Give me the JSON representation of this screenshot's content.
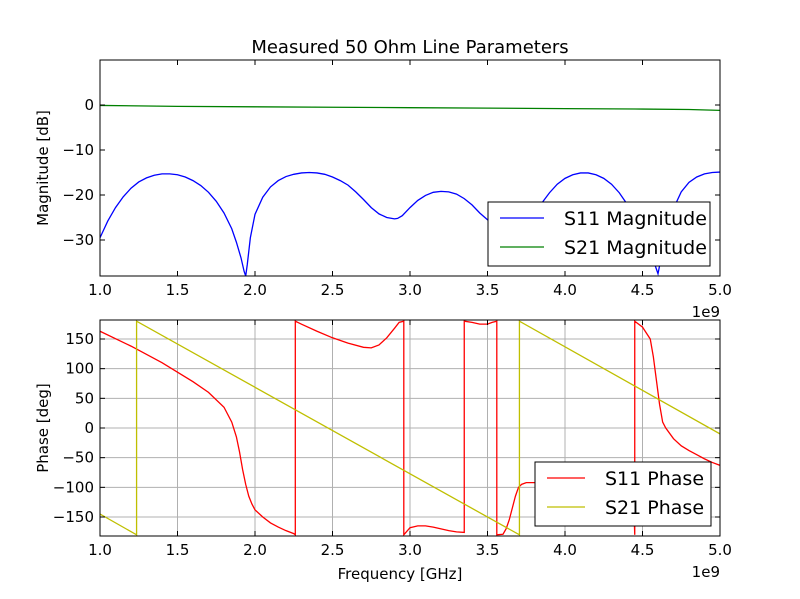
{
  "chart_data": [
    {
      "type": "line",
      "title": "Measured 50 Ohm Line Parameters",
      "xlabel": "",
      "ylabel": "Magnitude [dB]",
      "xlim": [
        1.0,
        5.0
      ],
      "ylim": [
        -38,
        10
      ],
      "x_ticks": [
        "1.0",
        "1.5",
        "2.0",
        "2.5",
        "3.0",
        "3.5",
        "4.0",
        "4.5",
        "5.0"
      ],
      "y_ticks": [
        "0",
        "−10",
        "−20",
        "−30"
      ],
      "x_offset_label": "1e9",
      "grid": false,
      "legend_position": "lower-right",
      "series": [
        {
          "name": "S11 Magnitude",
          "color": "#0000ff",
          "x": [
            1.0,
            1.05,
            1.1,
            1.15,
            1.2,
            1.25,
            1.3,
            1.35,
            1.4,
            1.45,
            1.5,
            1.55,
            1.6,
            1.65,
            1.7,
            1.75,
            1.8,
            1.85,
            1.88,
            1.91,
            1.93,
            1.94,
            1.95,
            1.97,
            2.0,
            2.05,
            2.1,
            2.15,
            2.2,
            2.25,
            2.3,
            2.35,
            2.4,
            2.45,
            2.5,
            2.55,
            2.6,
            2.65,
            2.7,
            2.75,
            2.8,
            2.85,
            2.9,
            2.92,
            2.95,
            3.0,
            3.05,
            3.1,
            3.15,
            3.2,
            3.25,
            3.3,
            3.35,
            3.4,
            3.45,
            3.5,
            3.55,
            3.6,
            3.65,
            3.7,
            3.75,
            3.8,
            3.85,
            3.9,
            3.95,
            4.0,
            4.05,
            4.1,
            4.15,
            4.2,
            4.25,
            4.3,
            4.35,
            4.4,
            4.45,
            4.5,
            4.55,
            4.58,
            4.6,
            4.62,
            4.65,
            4.7,
            4.75,
            4.8,
            4.85,
            4.9,
            4.95,
            5.0
          ],
          "y": [
            -29.5,
            -25.8,
            -22.8,
            -20.4,
            -18.5,
            -17.1,
            -16.2,
            -15.6,
            -15.3,
            -15.3,
            -15.5,
            -16.0,
            -16.8,
            -17.9,
            -19.4,
            -21.4,
            -24.0,
            -27.5,
            -30.5,
            -34.0,
            -37.0,
            -38.0,
            -35.5,
            -29.5,
            -24.3,
            -20.5,
            -18.2,
            -16.8,
            -15.9,
            -15.4,
            -15.1,
            -15.0,
            -15.1,
            -15.4,
            -16.0,
            -16.8,
            -17.8,
            -19.3,
            -21.0,
            -22.8,
            -24.2,
            -25.0,
            -25.3,
            -25.2,
            -24.6,
            -22.8,
            -21.2,
            -20.1,
            -19.4,
            -19.2,
            -19.3,
            -19.8,
            -20.8,
            -22.2,
            -24.0,
            -25.5,
            -27.0,
            -28.0,
            -28.5,
            -28.0,
            -26.5,
            -24.3,
            -21.8,
            -19.5,
            -17.6,
            -16.3,
            -15.5,
            -15.1,
            -15.1,
            -15.5,
            -16.3,
            -17.6,
            -19.5,
            -22.0,
            -25.0,
            -28.5,
            -33.0,
            -35.5,
            -37.5,
            -34.0,
            -28.5,
            -23.0,
            -19.3,
            -17.2,
            -16.0,
            -15.3,
            -15.0,
            -14.9
          ]
        },
        {
          "name": "S21 Magnitude",
          "color": "#008000",
          "x": [
            1.0,
            1.5,
            2.0,
            2.5,
            3.0,
            3.5,
            4.0,
            4.5,
            4.8,
            5.0
          ],
          "y": [
            -0.1,
            -0.3,
            -0.4,
            -0.5,
            -0.6,
            -0.7,
            -0.8,
            -0.9,
            -1.0,
            -1.2
          ]
        }
      ]
    },
    {
      "type": "line",
      "title": "",
      "xlabel": "Frequency [GHz]",
      "ylabel": "Phase [deg]",
      "xlim": [
        1.0,
        5.0
      ],
      "ylim": [
        -182,
        182
      ],
      "x_ticks": [
        "1.0",
        "1.5",
        "2.0",
        "2.5",
        "3.0",
        "3.5",
        "4.0",
        "4.5",
        "5.0"
      ],
      "y_ticks": [
        "150",
        "100",
        "50",
        "0",
        "−50",
        "−100",
        "−150"
      ],
      "x_offset_label": "1e9",
      "grid": true,
      "legend_position": "lower-right",
      "series": [
        {
          "name": "S11 Phase",
          "color": "#ff0000",
          "x": [
            1.0,
            1.2,
            1.4,
            1.6,
            1.7,
            1.8,
            1.85,
            1.88,
            1.9,
            1.92,
            1.94,
            1.96,
            1.98,
            2.0,
            2.05,
            2.1,
            2.15,
            2.2,
            2.25,
            2.26,
            2.26,
            2.3,
            2.4,
            2.5,
            2.6,
            2.7,
            2.75,
            2.8,
            2.85,
            2.9,
            2.93,
            2.96,
            2.96,
            2.96,
            3.0,
            3.05,
            3.1,
            3.15,
            3.2,
            3.25,
            3.3,
            3.35,
            3.35,
            3.4,
            3.45,
            3.5,
            3.53,
            3.56,
            3.56,
            3.56,
            3.6,
            3.62,
            3.64,
            3.66,
            3.68,
            3.7,
            3.72,
            3.75,
            3.8,
            3.85,
            3.9,
            3.95,
            4.0,
            4.05,
            4.1,
            4.15,
            4.2,
            4.25,
            4.3,
            4.35,
            4.4,
            4.44,
            4.45,
            4.45,
            4.45,
            4.5,
            4.55,
            4.57,
            4.59,
            4.61,
            4.63,
            4.65,
            4.7,
            4.75,
            4.8,
            4.85,
            4.9,
            4.95,
            5.0
          ],
          "y": [
            163,
            138,
            110,
            78,
            60,
            35,
            10,
            -15,
            -40,
            -70,
            -95,
            -115,
            -128,
            -138,
            -150,
            -160,
            -167,
            -173,
            -178,
            -180,
            180,
            175,
            163,
            152,
            143,
            136,
            135,
            140,
            152,
            168,
            178,
            180,
            -175,
            -180,
            -168,
            -165,
            -165,
            -167,
            -170,
            -173,
            -175,
            -176,
            180,
            178,
            175,
            175,
            178,
            180,
            -170,
            -180,
            -179,
            -170,
            -155,
            -135,
            -115,
            -100,
            -95,
            -92,
            -92,
            -93,
            -94,
            -95,
            -96,
            -97,
            -98,
            -99,
            -100,
            -100,
            -100,
            -100,
            -100,
            -100,
            -180,
            -50,
            180,
            170,
            150,
            120,
            80,
            40,
            10,
            0,
            -18,
            -30,
            -38,
            -45,
            -52,
            -58,
            -63
          ]
        },
        {
          "name": "S21 Phase",
          "color": "#bfbf00",
          "x": [
            1.0,
            1.236,
            1.236,
            3.706,
            3.706,
            5.0
          ],
          "y": [
            -145,
            -180,
            180,
            -180,
            180,
            -10
          ]
        }
      ]
    }
  ]
}
